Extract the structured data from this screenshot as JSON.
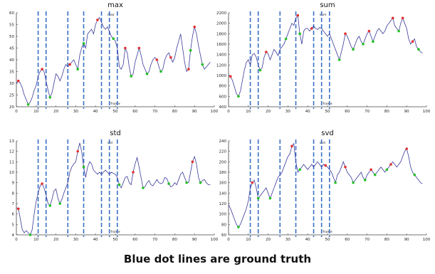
{
  "caption": "Blue dot lines are ground truth",
  "colors": {
    "line": "#3a3a9a",
    "peak": "#e23030",
    "trough": "#22c022",
    "ground_truth": "#3a6fc4",
    "axis": "#444444"
  },
  "ground_truth_frames": [
    11,
    15,
    26,
    34,
    43,
    47,
    51
  ],
  "chart_data": [
    {
      "type": "line",
      "title": "max",
      "xlabel": "frame",
      "legend_label": "max",
      "xlim": [
        0,
        100
      ],
      "ylim": [
        20,
        60
      ],
      "xticks": [
        "0",
        "10",
        "20",
        "30",
        "40",
        "50",
        "60",
        "70",
        "80",
        "90",
        "100"
      ],
      "yticks": [
        "20",
        "25",
        "30",
        "35",
        "40",
        "45",
        "50",
        "55",
        "60"
      ],
      "x": [
        0,
        1,
        2,
        3,
        4,
        5,
        6,
        7,
        8,
        9,
        10,
        11,
        12,
        13,
        14,
        15,
        16,
        17,
        18,
        19,
        20,
        21,
        22,
        23,
        24,
        25,
        26,
        27,
        28,
        29,
        30,
        31,
        32,
        33,
        34,
        35,
        36,
        37,
        38,
        39,
        40,
        41,
        42,
        43,
        44,
        45,
        46,
        47,
        48,
        49,
        50,
        51,
        52,
        53,
        54,
        55,
        56,
        57,
        58,
        59,
        60,
        61,
        62,
        63,
        64,
        65,
        66,
        67,
        68,
        69,
        70,
        71,
        72,
        73,
        74,
        75,
        76,
        77,
        78,
        79,
        80,
        81,
        82,
        83,
        84,
        85,
        86,
        87,
        88,
        89,
        90,
        91,
        92,
        93,
        94,
        95,
        96,
        97,
        98
      ],
      "y": [
        30,
        31,
        30,
        28,
        25,
        23,
        21,
        22,
        24,
        27,
        29,
        33,
        35,
        36,
        35,
        31,
        27,
        24,
        26,
        30,
        34,
        33,
        31,
        33,
        36,
        38,
        37,
        38,
        39,
        40,
        38,
        36,
        42,
        45,
        47,
        45,
        51,
        52,
        53,
        51,
        55,
        57,
        58,
        56,
        54,
        53,
        54,
        52,
        50,
        49,
        48,
        45,
        37,
        36,
        38,
        45,
        43,
        37,
        33,
        34,
        39,
        42,
        45,
        42,
        38,
        36,
        34,
        35,
        38,
        40,
        41,
        40,
        37,
        35,
        36,
        40,
        42,
        43,
        41,
        39,
        41,
        45,
        48,
        51,
        45,
        39,
        35,
        36,
        44,
        50,
        54,
        51,
        46,
        42,
        38,
        36,
        37,
        38,
        39
      ],
      "peaks": [
        1,
        13,
        27,
        41,
        55,
        62,
        71,
        78,
        87,
        90
      ],
      "troughs": [
        6,
        17,
        31,
        34,
        49,
        58,
        66,
        73,
        88,
        94
      ]
    },
    {
      "type": "line",
      "title": "sum",
      "xlabel": "frame",
      "legend_label": "sum",
      "xlim": [
        0,
        100
      ],
      "ylim": [
        400,
        2200
      ],
      "xticks": [
        "0",
        "10",
        "20",
        "30",
        "40",
        "50",
        "60",
        "70",
        "80",
        "90",
        "100"
      ],
      "yticks": [
        "400",
        "600",
        "800",
        "1000",
        "1200",
        "1400",
        "1600",
        "1800",
        "2000",
        "2200"
      ],
      "x": [
        0,
        1,
        2,
        3,
        4,
        5,
        6,
        7,
        8,
        9,
        10,
        11,
        12,
        13,
        14,
        15,
        16,
        17,
        18,
        19,
        20,
        21,
        22,
        23,
        24,
        25,
        26,
        27,
        28,
        29,
        30,
        31,
        32,
        33,
        34,
        35,
        36,
        37,
        38,
        39,
        40,
        41,
        42,
        43,
        44,
        45,
        46,
        47,
        48,
        49,
        50,
        51,
        52,
        53,
        54,
        55,
        56,
        57,
        58,
        59,
        60,
        61,
        62,
        63,
        64,
        65,
        66,
        67,
        68,
        69,
        70,
        71,
        72,
        73,
        74,
        75,
        76,
        77,
        78,
        79,
        80,
        81,
        82,
        83,
        84,
        85,
        86,
        87,
        88,
        89,
        90,
        91,
        92,
        93,
        94,
        95,
        96,
        97,
        98
      ],
      "y": [
        1000,
        980,
        900,
        780,
        650,
        600,
        700,
        900,
        1100,
        1250,
        1300,
        1200,
        1400,
        1420,
        1350,
        1200,
        1100,
        1150,
        1350,
        1450,
        1420,
        1300,
        1400,
        1500,
        1450,
        1380,
        1500,
        1550,
        1600,
        1700,
        1800,
        1900,
        2000,
        1960,
        2100,
        2150,
        1800,
        1600,
        1850,
        1900,
        1900,
        1850,
        1900,
        1950,
        1900,
        1880,
        1920,
        1900,
        1850,
        1800,
        1750,
        1800,
        1700,
        1600,
        1500,
        1400,
        1300,
        1450,
        1600,
        1800,
        1750,
        1650,
        1550,
        1500,
        1600,
        1700,
        1750,
        1650,
        1600,
        1700,
        1800,
        1850,
        1750,
        1650,
        1750,
        1850,
        1900,
        1850,
        1800,
        1850,
        1950,
        2000,
        2050,
        2100,
        1950,
        1900,
        1850,
        2000,
        2100,
        2000,
        1900,
        1700,
        1600,
        1650,
        1700,
        1550,
        1500,
        1450,
        1430
      ],
      "peaks": [
        1,
        19,
        35,
        42,
        59,
        71,
        83,
        88,
        93
      ],
      "troughs": [
        5,
        16,
        29,
        36,
        56,
        63,
        68,
        73,
        86,
        96
      ]
    },
    {
      "type": "line",
      "title": "std",
      "xlabel": "frame",
      "legend_label": "std",
      "xlim": [
        0,
        100
      ],
      "ylim": [
        4,
        13
      ],
      "xticks": [
        "0",
        "10",
        "20",
        "30",
        "40",
        "50",
        "60",
        "70",
        "80",
        "90",
        "100"
      ],
      "yticks": [
        "4",
        "5",
        "6",
        "7",
        "8",
        "9",
        "10",
        "11",
        "12",
        "13"
      ],
      "x": [
        0,
        1,
        2,
        3,
        4,
        5,
        6,
        7,
        8,
        9,
        10,
        11,
        12,
        13,
        14,
        15,
        16,
        17,
        18,
        19,
        20,
        21,
        22,
        23,
        24,
        25,
        26,
        27,
        28,
        29,
        30,
        31,
        32,
        33,
        34,
        35,
        36,
        37,
        38,
        39,
        40,
        41,
        42,
        43,
        44,
        45,
        46,
        47,
        48,
        49,
        50,
        51,
        52,
        53,
        54,
        55,
        56,
        57,
        58,
        59,
        60,
        61,
        62,
        63,
        64,
        65,
        66,
        67,
        68,
        69,
        70,
        71,
        72,
        73,
        74,
        75,
        76,
        77,
        78,
        79,
        80,
        81,
        82,
        83,
        84,
        85,
        86,
        87,
        88,
        89,
        90,
        91,
        92,
        93,
        94,
        95,
        96,
        97,
        98
      ],
      "y": [
        6.6,
        6.5,
        5.5,
        4.5,
        4.2,
        4.4,
        4.2,
        4.0,
        4.5,
        6.0,
        7.2,
        8.0,
        8.7,
        8.9,
        8.5,
        7.8,
        7.0,
        6.8,
        7.4,
        8.2,
        8.4,
        7.5,
        7.0,
        7.4,
        8.0,
        8.5,
        9.0,
        10.0,
        10.5,
        10.8,
        11.0,
        12.0,
        12.8,
        12.0,
        10.5,
        9.5,
        10.5,
        11.0,
        10.8,
        10.2,
        10.0,
        9.8,
        10.0,
        9.8,
        10.0,
        10.2,
        10.0,
        9.8,
        10.0,
        9.9,
        9.8,
        9.5,
        8.8,
        8.5,
        9.0,
        9.5,
        9.6,
        9.0,
        8.8,
        10.0,
        10.8,
        11.4,
        10.5,
        9.5,
        8.5,
        8.6,
        9.0,
        9.2,
        8.8,
        8.7,
        9.0,
        9.3,
        9.0,
        8.9,
        9.0,
        9.5,
        9.4,
        8.9,
        8.6,
        8.7,
        9.0,
        8.8,
        9.3,
        9.8,
        10.0,
        9.5,
        9.0,
        9.0,
        10.0,
        11.0,
        11.5,
        10.8,
        9.5,
        9.0,
        9.2,
        9.3,
        9.0,
        8.8,
        8.8
      ],
      "peaks": [
        1,
        13,
        31,
        59,
        89
      ],
      "troughs": [
        7,
        17,
        22,
        34,
        52,
        64,
        77,
        86,
        93
      ]
    },
    {
      "type": "line",
      "title": "svd",
      "xlabel": "frame",
      "legend_label": "svd",
      "xlim": [
        0,
        100
      ],
      "ylim": [
        60,
        240
      ],
      "xticks": [
        "0",
        "10",
        "20",
        "30",
        "40",
        "50",
        "60",
        "70",
        "80",
        "90",
        "100"
      ],
      "yticks": [
        "60",
        "80",
        "100",
        "120",
        "140",
        "160",
        "180",
        "200",
        "220",
        "240"
      ],
      "x": [
        0,
        1,
        2,
        3,
        4,
        5,
        6,
        7,
        8,
        9,
        10,
        11,
        12,
        13,
        14,
        15,
        16,
        17,
        18,
        19,
        20,
        21,
        22,
        23,
        24,
        25,
        26,
        27,
        28,
        29,
        30,
        31,
        32,
        33,
        34,
        35,
        36,
        37,
        38,
        39,
        40,
        41,
        42,
        43,
        44,
        45,
        46,
        47,
        48,
        49,
        50,
        51,
        52,
        53,
        54,
        55,
        56,
        57,
        58,
        59,
        60,
        61,
        62,
        63,
        64,
        65,
        66,
        67,
        68,
        69,
        70,
        71,
        72,
        73,
        74,
        75,
        76,
        77,
        78,
        79,
        80,
        81,
        82,
        83,
        84,
        85,
        86,
        87,
        88,
        89,
        90,
        91,
        92,
        93,
        94,
        95,
        96,
        97,
        98
      ],
      "y": [
        118,
        110,
        100,
        90,
        80,
        75,
        80,
        90,
        100,
        110,
        125,
        150,
        160,
        165,
        150,
        130,
        135,
        140,
        145,
        150,
        140,
        130,
        140,
        150,
        160,
        170,
        175,
        180,
        190,
        200,
        210,
        215,
        230,
        235,
        200,
        180,
        185,
        190,
        195,
        190,
        185,
        190,
        195,
        190,
        195,
        200,
        195,
        190,
        195,
        193,
        190,
        185,
        180,
        170,
        160,
        175,
        180,
        190,
        200,
        190,
        180,
        175,
        170,
        160,
        165,
        170,
        175,
        180,
        170,
        165,
        175,
        180,
        185,
        180,
        175,
        180,
        185,
        190,
        185,
        180,
        185,
        190,
        195,
        200,
        195,
        190,
        195,
        200,
        210,
        220,
        225,
        210,
        190,
        180,
        175,
        170,
        165,
        160,
        158
      ],
      "peaks": [
        12,
        32,
        49,
        59,
        72,
        82,
        90
      ],
      "troughs": [
        5,
        15,
        21,
        36,
        54,
        63,
        69,
        74,
        80,
        94
      ]
    }
  ]
}
